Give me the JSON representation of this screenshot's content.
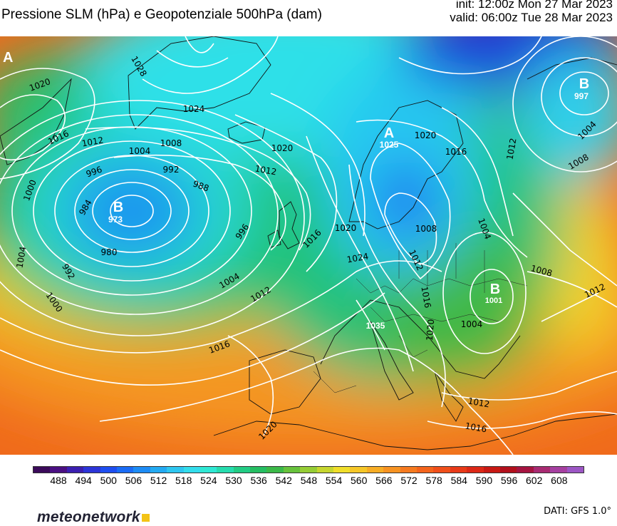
{
  "header": {
    "title": "Pressione SLM (hPa) e Geopotenziale 500hPa (dam)",
    "init": "init: 12:00z Mon 27 Mar 2023",
    "valid": "valid: 06:00z Tue 28 Mar 2023"
  },
  "map": {
    "pressure_centres": [
      {
        "letter": "A",
        "value": ""
      },
      {
        "letter": "B",
        "value": "997"
      },
      {
        "letter": "A",
        "value": "1025"
      },
      {
        "letter": "B",
        "value": "973"
      },
      {
        "letter": "B",
        "value": "1001"
      },
      {
        "letter": "",
        "value": "1035"
      }
    ],
    "isobar_labels": [
      "1020",
      "1028",
      "1024",
      "1016",
      "1012",
      "1008",
      "1004",
      "1020",
      "1012",
      "996",
      "992",
      "988",
      "1000",
      "984",
      "996",
      "980",
      "992",
      "1004",
      "1000",
      "1004",
      "1012",
      "1016",
      "1020",
      "1024",
      "1016",
      "1020",
      "1016",
      "1012",
      "1008",
      "1004",
      "1012",
      "1008",
      "1004",
      "1012",
      "1016",
      "1020",
      "1008",
      "1004",
      "1012",
      "1016",
      "1020"
    ]
  },
  "colorbar": {
    "colors": [
      "#3b0a5a",
      "#4a0f82",
      "#3b1fb0",
      "#2c35d8",
      "#1e4ef0",
      "#1a6cf5",
      "#1d8cf5",
      "#23aaf2",
      "#2ec6f0",
      "#33ddec",
      "#2fe8d4",
      "#26dcae",
      "#22cc84",
      "#25be62",
      "#3bb948",
      "#67c23c",
      "#96cd35",
      "#c6d62f",
      "#f0de2a",
      "#f6c728",
      "#f7ad25",
      "#f79322",
      "#f67a1f",
      "#f4641c",
      "#f04f1a",
      "#e83a18",
      "#dc2816",
      "#c81914",
      "#b2101c",
      "#a51440",
      "#a82a72",
      "#a53fa0",
      "#9c56c4"
    ],
    "labels": [
      "488",
      "494",
      "500",
      "506",
      "512",
      "518",
      "524",
      "530",
      "536",
      "542",
      "548",
      "554",
      "560",
      "566",
      "572",
      "578",
      "584",
      "590",
      "596",
      "602",
      "608"
    ]
  },
  "footer": {
    "brand": "meteonetwork",
    "source": "DATI: GFS 1.0°"
  }
}
